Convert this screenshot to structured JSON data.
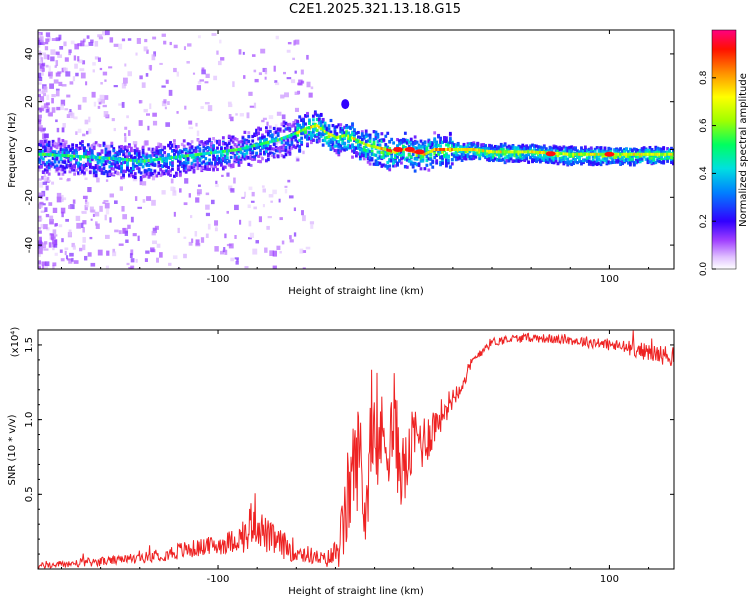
{
  "title": "C2E1.2025.321.13.18.G15",
  "chart_data": [
    {
      "type": "heatmap",
      "title": "C2E1.2025.321.13.18.G15",
      "xlabel": "Height of straight line (km)",
      "ylabel": "Frequency (Hz)",
      "xlim": [
        -192,
        133
      ],
      "ylim": [
        -50,
        50
      ],
      "xticks": [
        -100,
        100
      ],
      "yticks": [
        -40,
        -20,
        0,
        20,
        40
      ],
      "ridge": {
        "x": [
          -190,
          -170,
          -150,
          -140,
          -130,
          -120,
          -110,
          -100,
          -90,
          -80,
          -70,
          -60,
          -55,
          -50,
          -45,
          -40,
          -35,
          -30,
          -25,
          -20,
          -15,
          -10,
          -5,
          0,
          5,
          10,
          20,
          30,
          40,
          60,
          80,
          100,
          120,
          133
        ],
        "freq": [
          -2,
          -3,
          -4,
          -5,
          -4,
          -3,
          -2,
          -1,
          0,
          2,
          4,
          7,
          9,
          10,
          7,
          5,
          6,
          4,
          2,
          1,
          0,
          -1,
          0,
          -1,
          -2,
          0,
          0,
          0,
          -1,
          -1,
          -2,
          -2,
          -2,
          -2
        ]
      },
      "colorbar": {
        "label": "Normalized spectral amplitude",
        "ticks": [
          0.0,
          0.2,
          0.4,
          0.6,
          0.8
        ],
        "tick_labels": [
          "0.0",
          "0.2",
          "0.4",
          "0.6",
          "0.8"
        ],
        "range": [
          0,
          1
        ],
        "colors": [
          "#ffffff",
          "#e0c0ff",
          "#8000ff",
          "#0000ff",
          "#00c0ff",
          "#00ff80",
          "#80ff00",
          "#ffff00",
          "#ff8000",
          "#ff0000",
          "#ff0080"
        ]
      }
    },
    {
      "type": "line",
      "xlabel": "Height of straight line (km)",
      "ylabel": "SNR (10 * v/v)",
      "y_multiplier_label": "(x10⁴)",
      "xlim": [
        -192,
        133
      ],
      "ylim": [
        0,
        1.6
      ],
      "xticks": [
        -100,
        100
      ],
      "yticks": [
        0.5,
        1.0,
        1.5
      ],
      "ytick_labels": [
        "0.5",
        "1.0",
        "1.5"
      ],
      "color": "#ee2222",
      "series": [
        {
          "name": "SNR",
          "x": [
            -192,
            -170,
            -150,
            -130,
            -120,
            -110,
            -100,
            -90,
            -85,
            -82,
            -80,
            -75,
            -70,
            -60,
            -50,
            -45,
            -40,
            -36,
            -33,
            -30,
            -27,
            -25,
            -22,
            -20,
            -17,
            -15,
            -12,
            -10,
            -8,
            -5,
            -3,
            0,
            5,
            10,
            15,
            20,
            25,
            30,
            35,
            40,
            50,
            60,
            70,
            80,
            90,
            100,
            110,
            120,
            133
          ],
          "y": [
            0.02,
            0.04,
            0.06,
            0.09,
            0.12,
            0.14,
            0.16,
            0.2,
            0.22,
            0.38,
            0.3,
            0.22,
            0.18,
            0.12,
            0.08,
            0.06,
            0.1,
            0.25,
            0.55,
            0.7,
            0.8,
            0.3,
            0.85,
            0.7,
            0.9,
            0.85,
            0.88,
            1.0,
            0.75,
            0.65,
            0.7,
            0.9,
            0.85,
            0.95,
            1.05,
            1.15,
            1.25,
            1.38,
            1.47,
            1.52,
            1.54,
            1.55,
            1.54,
            1.53,
            1.52,
            1.5,
            1.48,
            1.45,
            1.42
          ],
          "noise": [
            0.02,
            0.03,
            0.03,
            0.04,
            0.06,
            0.06,
            0.07,
            0.08,
            0.12,
            0.2,
            0.14,
            0.12,
            0.1,
            0.08,
            0.05,
            0.05,
            0.1,
            0.25,
            0.35,
            0.35,
            0.35,
            0.25,
            0.35,
            0.3,
            0.3,
            0.3,
            0.3,
            0.35,
            0.3,
            0.25,
            0.25,
            0.2,
            0.2,
            0.15,
            0.1,
            0.08,
            0.06,
            0.05,
            0.04,
            0.03,
            0.03,
            0.03,
            0.03,
            0.03,
            0.04,
            0.04,
            0.05,
            0.06,
            0.07
          ]
        }
      ]
    }
  ]
}
